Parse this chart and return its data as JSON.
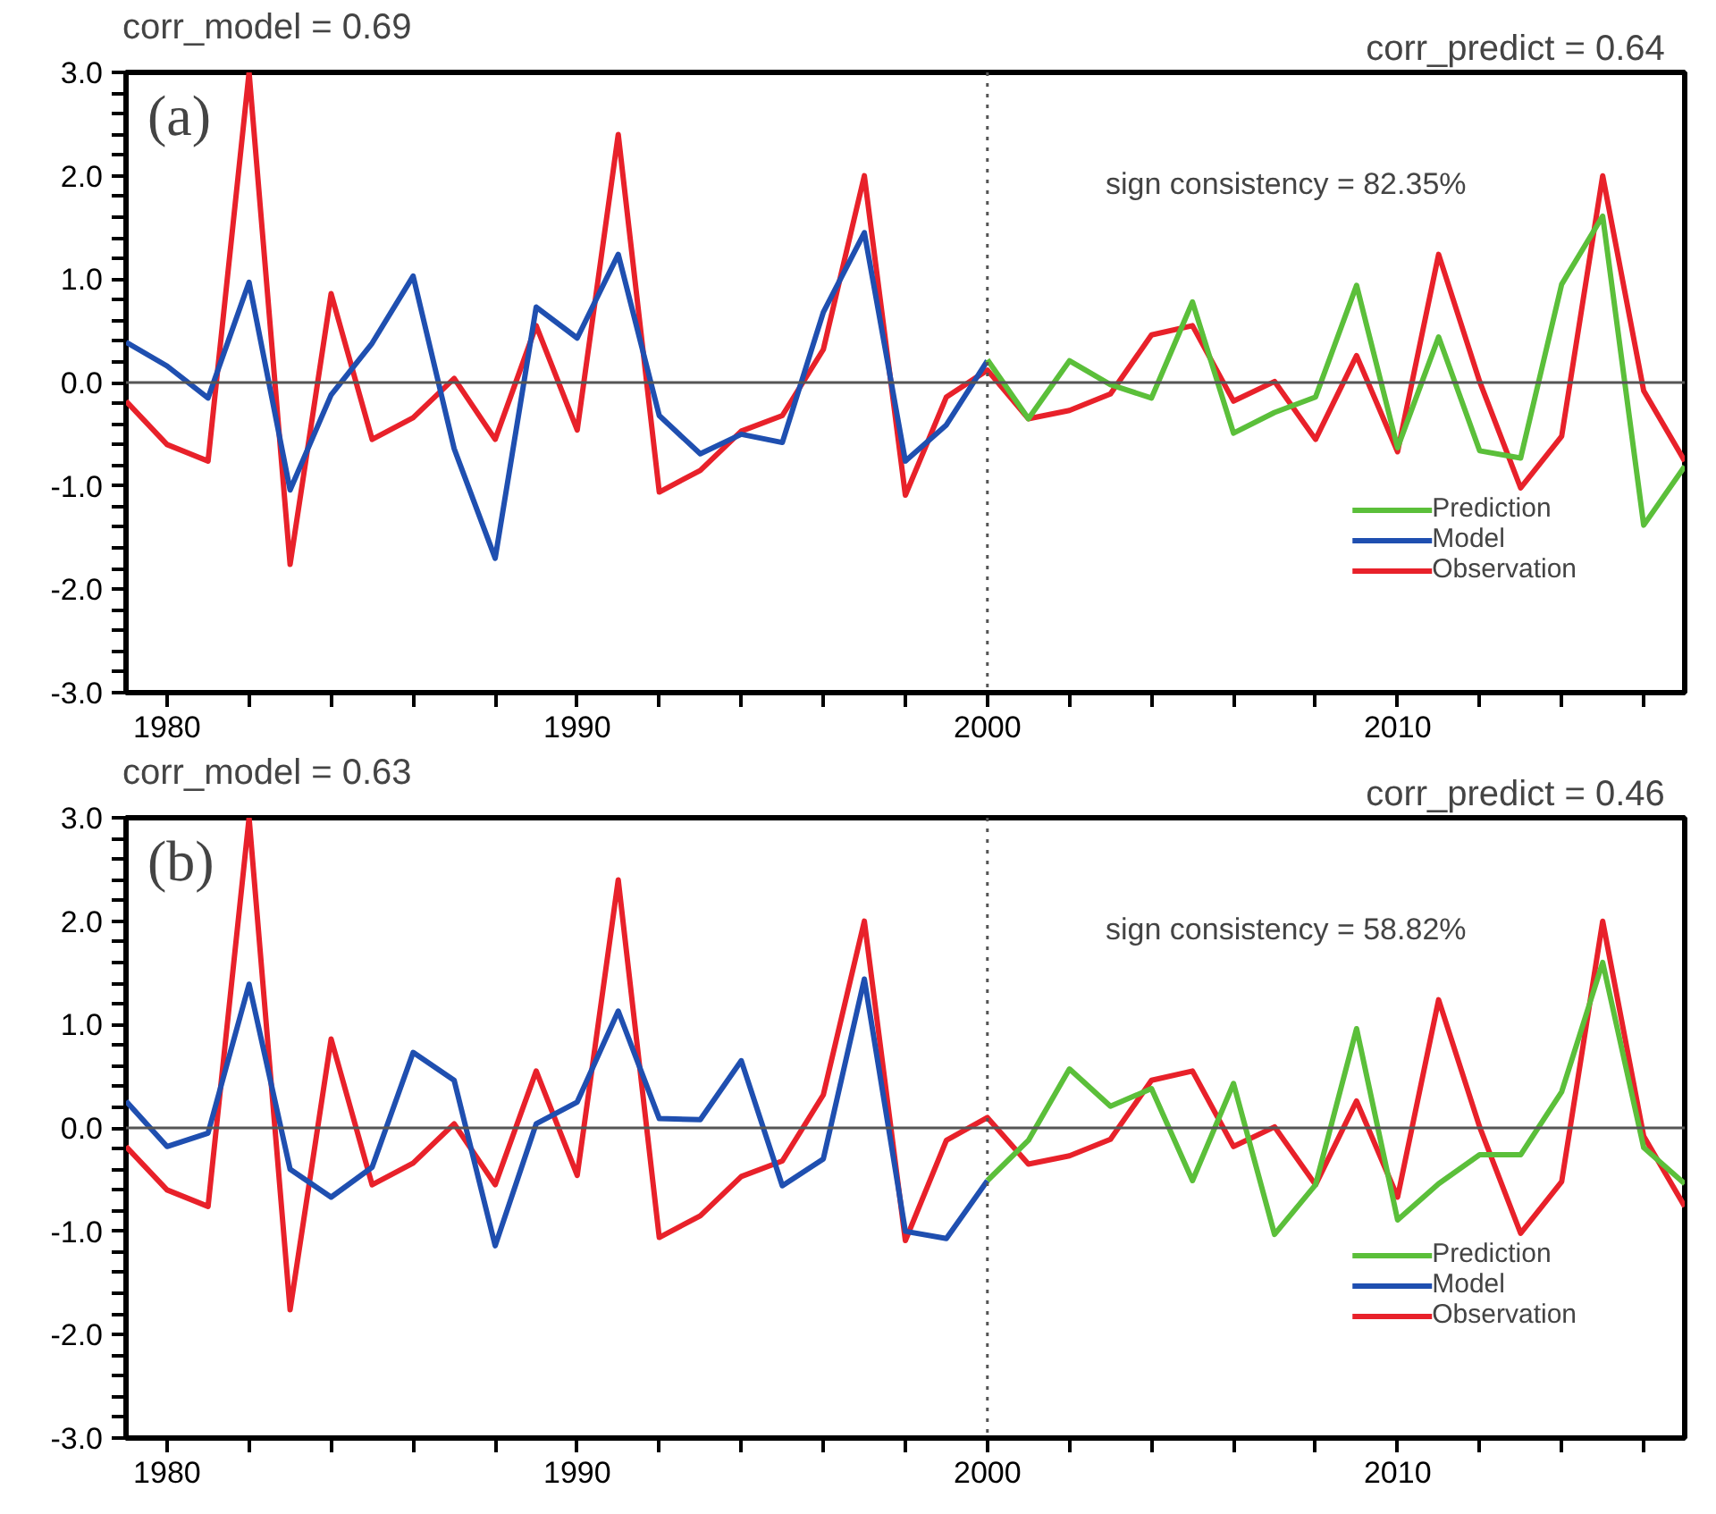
{
  "chart_data": [
    {
      "type": "line",
      "title": "corr_model =   0.69",
      "subtitle": "corr_predict =   0.64",
      "annotations": [
        "(a)",
        "sign consistency =   82.35%"
      ],
      "xlim": [
        1979,
        2017
      ],
      "ylim": [
        -3,
        3
      ],
      "xticks": [
        {
          "value": 1980,
          "label": "1980"
        },
        {
          "value": 1982,
          "label": null
        },
        {
          "value": 1984,
          "label": null
        },
        {
          "value": 1986,
          "label": null
        },
        {
          "value": 1988,
          "label": null
        },
        {
          "value": 1990,
          "label": "1990"
        },
        {
          "value": 1992,
          "label": null
        },
        {
          "value": 1994,
          "label": null
        },
        {
          "value": 1996,
          "label": null
        },
        {
          "value": 1998,
          "label": null
        },
        {
          "value": 2000,
          "label": "2000"
        },
        {
          "value": 2002,
          "label": null
        },
        {
          "value": 2004,
          "label": null
        },
        {
          "value": 2006,
          "label": null
        },
        {
          "value": 2008,
          "label": null
        },
        {
          "value": 2010,
          "label": "2010"
        },
        {
          "value": 2012,
          "label": null
        },
        {
          "value": 2014,
          "label": null
        },
        {
          "value": 2016,
          "label": null
        }
      ],
      "yticks": [
        {
          "value": -3,
          "label": "-3.0"
        },
        {
          "value": -2,
          "label": "-2.0"
        },
        {
          "value": -1,
          "label": "-1.0"
        },
        {
          "value": 0,
          "label": "0.0"
        },
        {
          "value": 1,
          "label": "1.0"
        },
        {
          "value": 2,
          "label": "2.0"
        },
        {
          "value": 3,
          "label": "3.0"
        },
        {
          "value": -2.8,
          "label": null
        },
        {
          "value": -2.6,
          "label": null
        },
        {
          "value": -2.4,
          "label": null
        },
        {
          "value": -2.2,
          "label": null
        },
        {
          "value": -1.8,
          "label": null
        },
        {
          "value": -1.6,
          "label": null
        },
        {
          "value": -1.4,
          "label": null
        },
        {
          "value": -1.2,
          "label": null
        },
        {
          "value": -0.8,
          "label": null
        },
        {
          "value": -0.6,
          "label": null
        },
        {
          "value": -0.4,
          "label": null
        },
        {
          "value": -0.2,
          "label": null
        },
        {
          "value": 0.2,
          "label": null
        },
        {
          "value": 0.4,
          "label": null
        },
        {
          "value": 0.6,
          "label": null
        },
        {
          "value": 0.8,
          "label": null
        },
        {
          "value": 1.2,
          "label": null
        },
        {
          "value": 1.4,
          "label": null
        },
        {
          "value": 1.6,
          "label": null
        },
        {
          "value": 1.8,
          "label": null
        },
        {
          "value": 2.2,
          "label": null
        },
        {
          "value": 2.4,
          "label": null
        },
        {
          "value": 2.6,
          "label": null
        },
        {
          "value": 2.8,
          "label": null
        }
      ],
      "grid": false,
      "legend": "bottom right",
      "ref_lines": [
        {
          "axis": "y",
          "value": 0,
          "color": "#555555",
          "line_style": "solid"
        },
        {
          "axis": "x",
          "value": 2000,
          "color": "#555555",
          "line_style": "dotted"
        }
      ],
      "series": [
        {
          "name": "Prediction",
          "color": "#5bbf3a",
          "x": [
            2000,
            2001,
            2002,
            2003,
            2004,
            2005,
            2006,
            2007,
            2008,
            2009,
            2010,
            2011,
            2012,
            2013,
            2014,
            2015,
            2016,
            2017
          ],
          "values": [
            0.22,
            -0.35,
            0.21,
            -0.02,
            -0.15,
            0.78,
            -0.49,
            -0.29,
            -0.14,
            0.94,
            -0.63,
            0.44,
            -0.66,
            -0.73,
            0.95,
            1.61,
            -1.38,
            -0.81
          ]
        },
        {
          "name": "Model",
          "color": "#1f4fb0",
          "x": [
            1979,
            1980,
            1981,
            1982,
            1983,
            1984,
            1985,
            1986,
            1987,
            1988,
            1989,
            1990,
            1991,
            1992,
            1993,
            1994,
            1995,
            1996,
            1997,
            1998,
            1999,
            2000
          ],
          "values": [
            0.39,
            0.16,
            -0.15,
            0.97,
            -1.04,
            -0.12,
            0.38,
            1.03,
            -0.64,
            -1.7,
            0.73,
            0.43,
            1.24,
            -0.32,
            -0.69,
            -0.5,
            -0.58,
            0.68,
            1.45,
            -0.76,
            -0.41,
            0.21
          ]
        },
        {
          "name": "Observation",
          "color": "#e8212a",
          "x": [
            1979,
            1980,
            1981,
            1982,
            1983,
            1984,
            1985,
            1986,
            1987,
            1988,
            1989,
            1990,
            1991,
            1992,
            1993,
            1994,
            1995,
            1996,
            1997,
            1998,
            1999,
            2000,
            2001,
            2002,
            2003,
            2004,
            2005,
            2006,
            2007,
            2008,
            2009,
            2010,
            2011,
            2012,
            2013,
            2014,
            2015,
            2016,
            2017
          ],
          "values": [
            -0.18,
            -0.6,
            -0.76,
            3.0,
            -1.76,
            0.86,
            -0.55,
            -0.34,
            0.04,
            -0.55,
            0.55,
            -0.46,
            2.4,
            -1.06,
            -0.85,
            -0.47,
            -0.32,
            0.32,
            2.0,
            -1.09,
            -0.14,
            0.12,
            -0.35,
            -0.27,
            -0.11,
            0.46,
            0.55,
            -0.18,
            0.01,
            -0.55,
            0.26,
            -0.67,
            1.24,
            0.01,
            -1.02,
            -0.52,
            2.0,
            -0.08,
            -0.76
          ]
        }
      ]
    },
    {
      "type": "line",
      "title": "corr_model =   0.63",
      "subtitle": "corr_predict =   0.46",
      "annotations": [
        "(b)",
        "sign consistency =   58.82%"
      ],
      "xlim": [
        1979,
        2017
      ],
      "ylim": [
        -3,
        3
      ],
      "xticks": [
        {
          "value": 1980,
          "label": "1980"
        },
        {
          "value": 1982,
          "label": null
        },
        {
          "value": 1984,
          "label": null
        },
        {
          "value": 1986,
          "label": null
        },
        {
          "value": 1988,
          "label": null
        },
        {
          "value": 1990,
          "label": "1990"
        },
        {
          "value": 1992,
          "label": null
        },
        {
          "value": 1994,
          "label": null
        },
        {
          "value": 1996,
          "label": null
        },
        {
          "value": 1998,
          "label": null
        },
        {
          "value": 2000,
          "label": "2000"
        },
        {
          "value": 2002,
          "label": null
        },
        {
          "value": 2004,
          "label": null
        },
        {
          "value": 2006,
          "label": null
        },
        {
          "value": 2008,
          "label": null
        },
        {
          "value": 2010,
          "label": "2010"
        },
        {
          "value": 2012,
          "label": null
        },
        {
          "value": 2014,
          "label": null
        },
        {
          "value": 2016,
          "label": null
        }
      ],
      "yticks": [
        {
          "value": -3,
          "label": "-3.0"
        },
        {
          "value": -2,
          "label": "-2.0"
        },
        {
          "value": -1,
          "label": "-1.0"
        },
        {
          "value": 0,
          "label": "0.0"
        },
        {
          "value": 1,
          "label": "1.0"
        },
        {
          "value": 2,
          "label": "2.0"
        },
        {
          "value": 3,
          "label": "3.0"
        },
        {
          "value": -2.8,
          "label": null
        },
        {
          "value": -2.6,
          "label": null
        },
        {
          "value": -2.4,
          "label": null
        },
        {
          "value": -2.2,
          "label": null
        },
        {
          "value": -1.8,
          "label": null
        },
        {
          "value": -1.6,
          "label": null
        },
        {
          "value": -1.4,
          "label": null
        },
        {
          "value": -1.2,
          "label": null
        },
        {
          "value": -0.8,
          "label": null
        },
        {
          "value": -0.6,
          "label": null
        },
        {
          "value": -0.4,
          "label": null
        },
        {
          "value": -0.2,
          "label": null
        },
        {
          "value": 0.2,
          "label": null
        },
        {
          "value": 0.4,
          "label": null
        },
        {
          "value": 0.6,
          "label": null
        },
        {
          "value": 0.8,
          "label": null
        },
        {
          "value": 1.2,
          "label": null
        },
        {
          "value": 1.4,
          "label": null
        },
        {
          "value": 1.6,
          "label": null
        },
        {
          "value": 1.8,
          "label": null
        },
        {
          "value": 2.2,
          "label": null
        },
        {
          "value": 2.4,
          "label": null
        },
        {
          "value": 2.6,
          "label": null
        },
        {
          "value": 2.8,
          "label": null
        }
      ],
      "grid": false,
      "legend": "bottom right",
      "ref_lines": [
        {
          "axis": "y",
          "value": 0,
          "color": "#555555",
          "line_style": "solid"
        },
        {
          "axis": "x",
          "value": 2000,
          "color": "#555555",
          "line_style": "dotted"
        }
      ],
      "series": [
        {
          "name": "Prediction",
          "color": "#5bbf3a",
          "x": [
            2000,
            2001,
            2002,
            2003,
            2004,
            2005,
            2006,
            2007,
            2008,
            2009,
            2010,
            2011,
            2012,
            2013,
            2014,
            2015,
            2016,
            2017
          ],
          "values": [
            -0.51,
            -0.12,
            0.57,
            0.21,
            0.38,
            -0.51,
            0.43,
            -1.03,
            -0.55,
            0.96,
            -0.89,
            -0.54,
            -0.26,
            -0.26,
            0.35,
            1.6,
            -0.19,
            -0.54
          ]
        },
        {
          "name": "Model",
          "color": "#1f4fb0",
          "x": [
            1979,
            1980,
            1981,
            1982,
            1983,
            1984,
            1985,
            1986,
            1987,
            1988,
            1989,
            1990,
            1991,
            1992,
            1993,
            1994,
            1995,
            1996,
            1997,
            1998,
            1999,
            2000
          ],
          "values": [
            0.26,
            -0.18,
            -0.05,
            1.39,
            -0.4,
            -0.67,
            -0.38,
            0.73,
            0.46,
            -1.14,
            0.04,
            0.25,
            1.13,
            0.09,
            0.08,
            0.65,
            -0.56,
            -0.3,
            1.44,
            -1.0,
            -1.07,
            -0.51
          ]
        },
        {
          "name": "Observation",
          "color": "#e8212a",
          "x": [
            1979,
            1980,
            1981,
            1982,
            1983,
            1984,
            1985,
            1986,
            1987,
            1988,
            1989,
            1990,
            1991,
            1992,
            1993,
            1994,
            1995,
            1996,
            1997,
            1998,
            1999,
            2000,
            2001,
            2002,
            2003,
            2004,
            2005,
            2006,
            2007,
            2008,
            2009,
            2010,
            2011,
            2012,
            2013,
            2014,
            2015,
            2016,
            2017
          ],
          "values": [
            -0.18,
            -0.6,
            -0.76,
            3.0,
            -1.76,
            0.86,
            -0.55,
            -0.34,
            0.04,
            -0.55,
            0.55,
            -0.46,
            2.4,
            -1.06,
            -0.85,
            -0.47,
            -0.32,
            0.32,
            2.0,
            -1.09,
            -0.12,
            0.1,
            -0.35,
            -0.27,
            -0.11,
            0.46,
            0.55,
            -0.18,
            0.01,
            -0.55,
            0.26,
            -0.67,
            1.24,
            0.01,
            -1.02,
            -0.52,
            2.0,
            -0.08,
            -0.76
          ]
        }
      ]
    }
  ]
}
